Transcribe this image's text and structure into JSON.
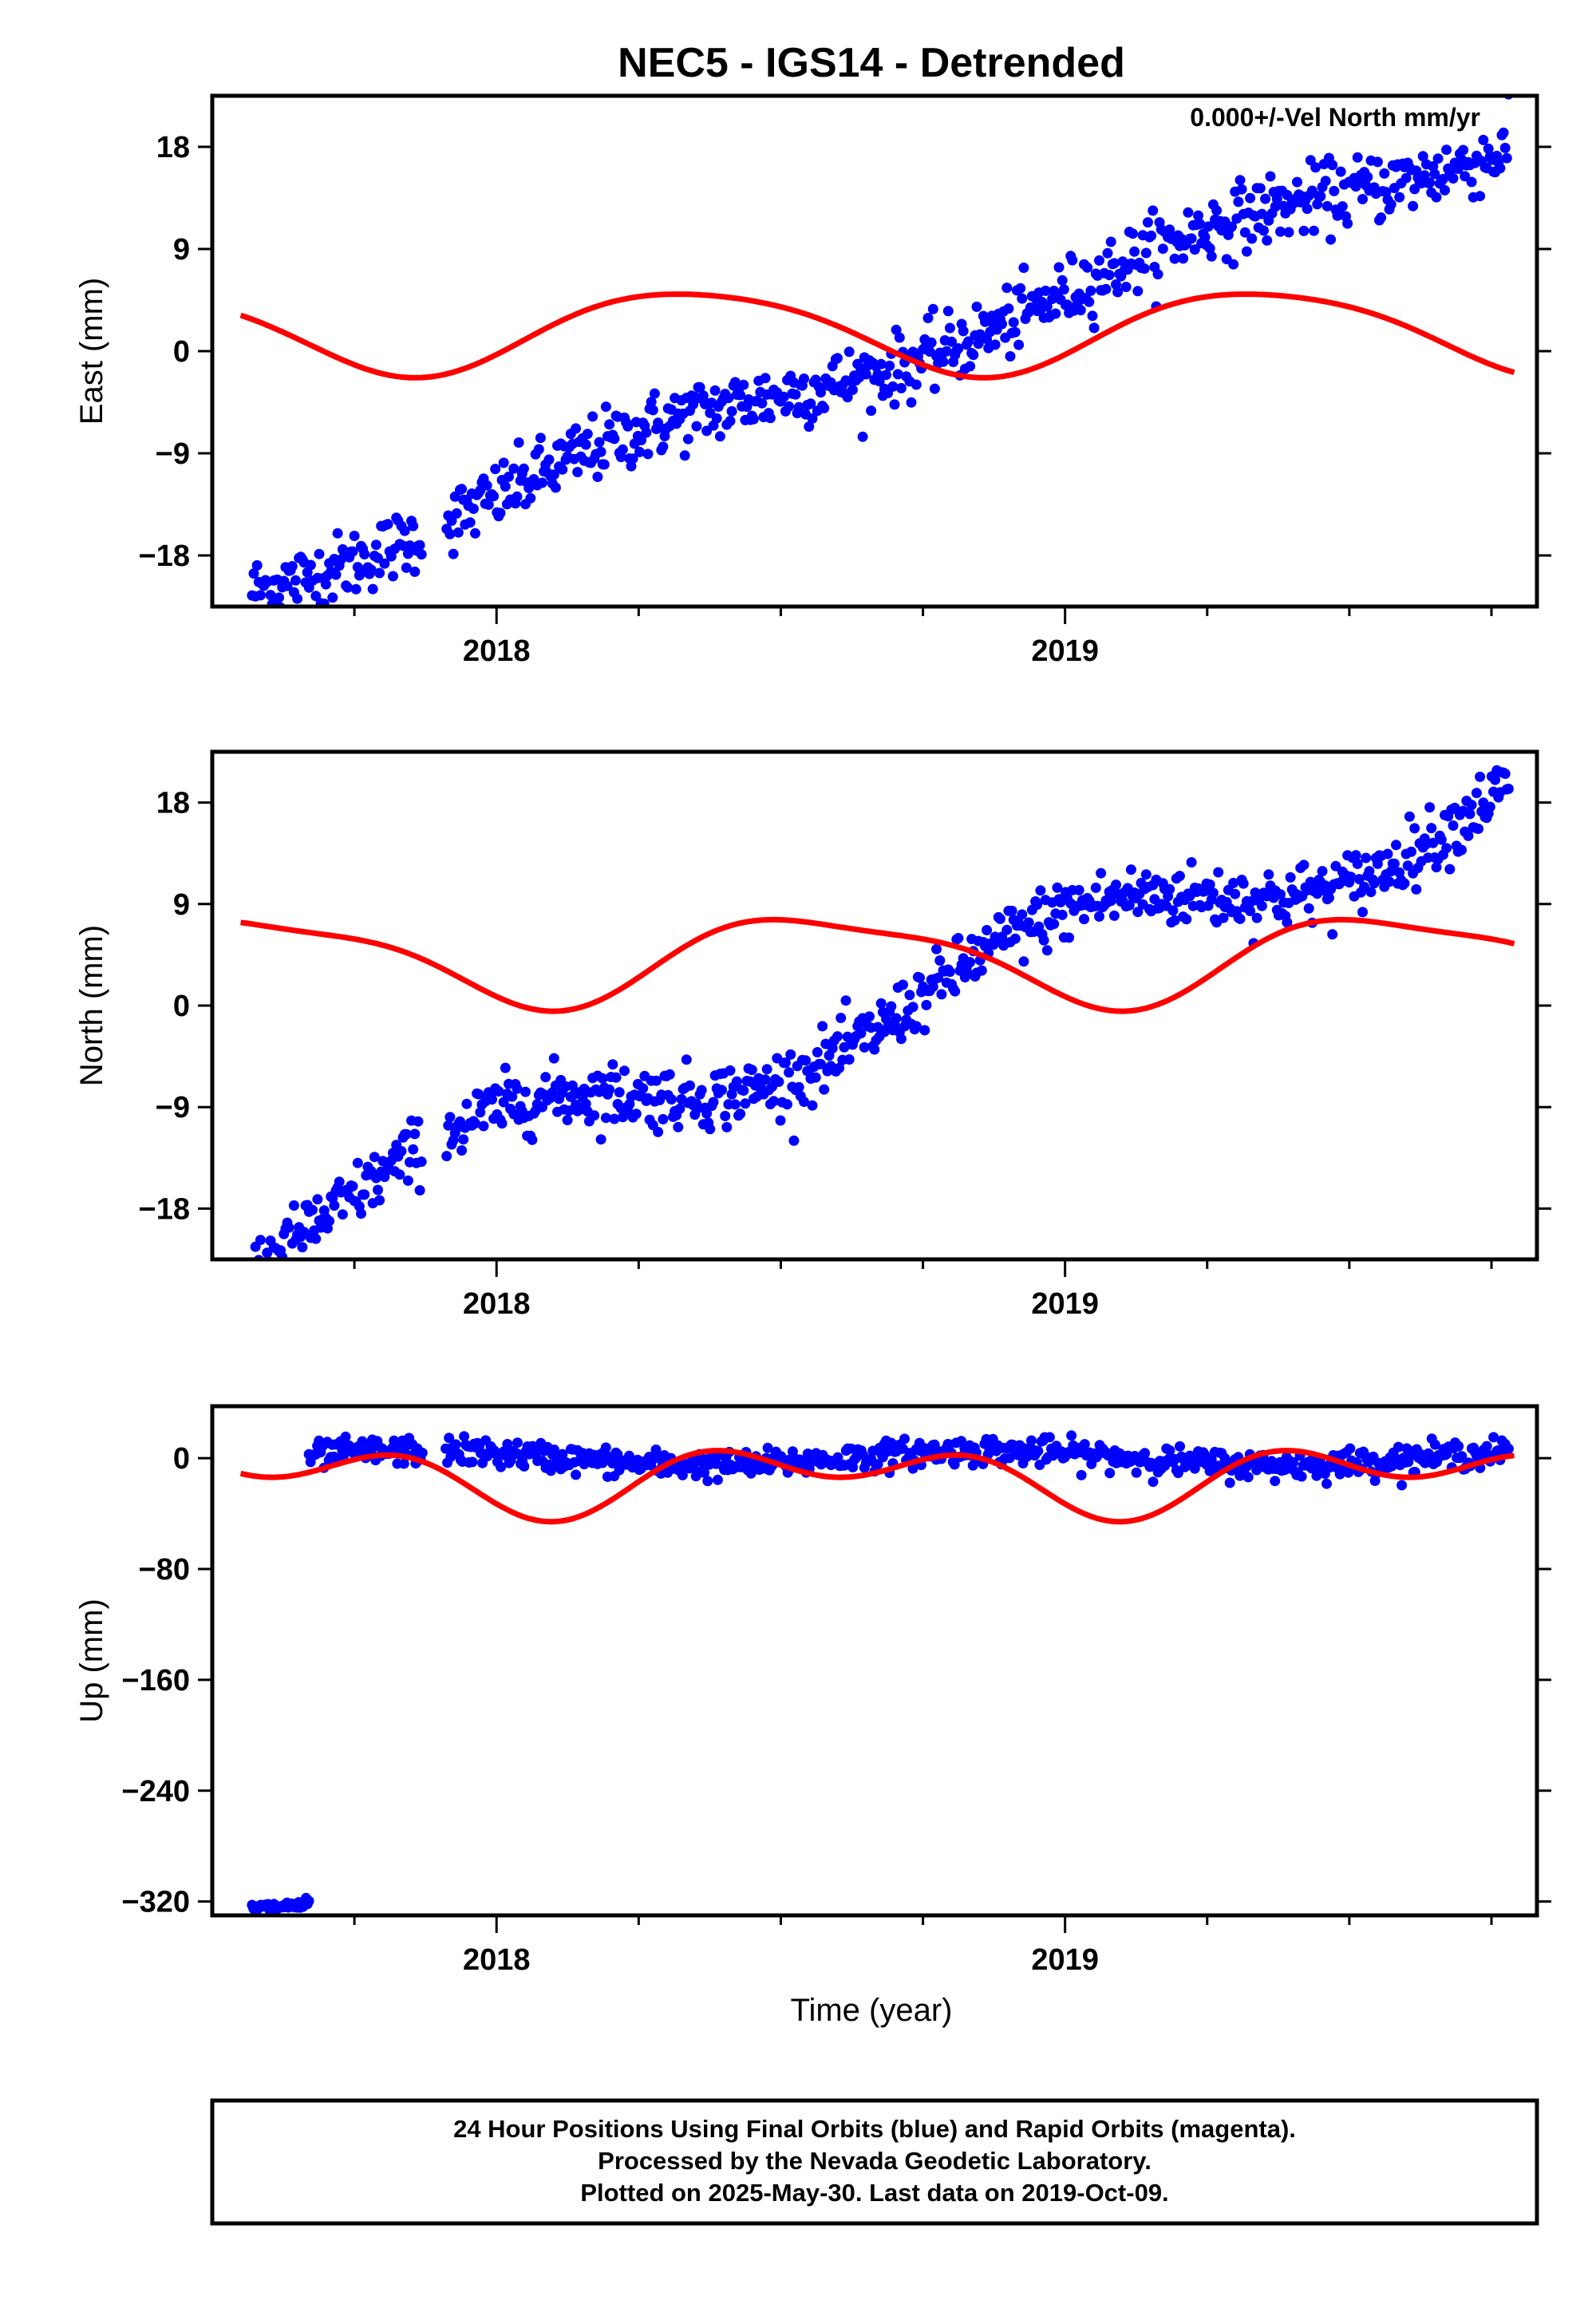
{
  "figure": {
    "title": "NEC5 - IGS14 - Detrended",
    "xlabel": "Time (year)"
  },
  "chart_data": [
    {
      "type": "scatter",
      "name": "east",
      "ylabel": "East (mm)",
      "annotation": "0.000+/-Vel North mm/yr",
      "xlim": [
        2017.5,
        2019.83
      ],
      "ylim": [
        -22.5,
        22.5
      ],
      "yticks": [
        -18,
        -9,
        0,
        9,
        18
      ],
      "ytick_labels": [
        "−18",
        "−9",
        "0",
        "9",
        "18"
      ],
      "xticks_major": [
        2018,
        2019
      ],
      "xtick_labels": [
        "2018",
        "2019"
      ],
      "xticks_minor": [
        2017.75,
        2018.25,
        2018.5,
        2018.75,
        2019.25,
        2019.5,
        2019.75
      ],
      "series": [
        {
          "kind": "points",
          "color": "#0000ff",
          "x_start": 2017.57,
          "x_end": 2019.78,
          "gaps": [
            [
              2017.87,
              2017.91
            ]
          ],
          "trend": [
            -20.5,
            19.0
          ],
          "wiggle": [
            1.3,
            0.0
          ],
          "noise": 1.5,
          "count": 750
        },
        {
          "kind": "curve",
          "color": "#ff0000",
          "mean": 1.8,
          "annual": [
            3.0,
            -2.1
          ],
          "semiannual": [
            0.5,
            0.0
          ]
        }
      ]
    },
    {
      "type": "scatter",
      "name": "north",
      "ylabel": "North (mm)",
      "xlim": [
        2017.5,
        2019.83
      ],
      "ylim": [
        -22.5,
        22.5
      ],
      "yticks": [
        -18,
        -9,
        0,
        9,
        18
      ],
      "ytick_labels": [
        "−18",
        "−9",
        "0",
        "9",
        "18"
      ],
      "xticks_major": [
        2018,
        2019
      ],
      "xtick_labels": [
        "2018",
        "2019"
      ],
      "xticks_minor": [
        2017.75,
        2018.25,
        2018.5,
        2018.75,
        2019.25,
        2019.5,
        2019.75
      ],
      "series": [
        {
          "kind": "points",
          "color": "#0000ff",
          "x_start": 2017.57,
          "x_end": 2019.78,
          "gaps": [
            [
              2017.87,
              2017.91
            ]
          ],
          "trend": [
            -20.0,
            19.0
          ],
          "wiggle": [
            0.0,
            3.2
          ],
          "noise": 1.4,
          "count": 750
        },
        {
          "kind": "curve",
          "color": "#ff0000",
          "mean": 4.2,
          "annual": [
            -1.7,
            -3.4
          ],
          "semiannual": [
            -1.0,
            0.0
          ]
        }
      ]
    },
    {
      "type": "scatter",
      "name": "up",
      "ylabel": "Up (mm)",
      "xlim": [
        2017.5,
        2019.83
      ],
      "ylim": [
        -330,
        37.5
      ],
      "yticks": [
        -320,
        -240,
        -160,
        -80,
        0
      ],
      "ytick_labels": [
        "−320",
        "−240",
        "−160",
        "−80",
        "0"
      ],
      "xticks_major": [
        2018,
        2019
      ],
      "xtick_labels": [
        "2018",
        "2019"
      ],
      "xticks_minor": [
        2017.75,
        2018.25,
        2018.5,
        2018.75,
        2019.25,
        2019.5,
        2019.75
      ],
      "series": [
        {
          "kind": "points",
          "color": "#0000ff",
          "x_start": 2017.57,
          "x_end": 2017.67,
          "gaps": [],
          "trend": [
            -325,
            -322
          ],
          "wiggle": [
            0,
            0
          ],
          "noise": 2.0,
          "count": 40
        },
        {
          "kind": "points",
          "color": "#0000ff",
          "x_start": 2017.67,
          "x_end": 2019.78,
          "gaps": [
            [
              2017.87,
              2017.91
            ]
          ],
          "trend": [
            0,
            0
          ],
          "wiggle": [
            -4.0,
            3.5
          ],
          "noise": 5.0,
          "count": 720
        },
        {
          "kind": "curve",
          "color": "#ff0000",
          "mean": -14.0,
          "annual": [
            -8.0,
            -14.0
          ],
          "semiannual": [
            -15.0,
            -5.0
          ]
        }
      ]
    }
  ],
  "footer": {
    "lines": [
      "24 Hour Positions Using Final Orbits (blue) and Rapid Orbits (magenta).",
      "Processed by the Nevada Geodetic Laboratory.",
      "Plotted on 2025-May-30. Last data on 2019-Oct-09."
    ]
  }
}
